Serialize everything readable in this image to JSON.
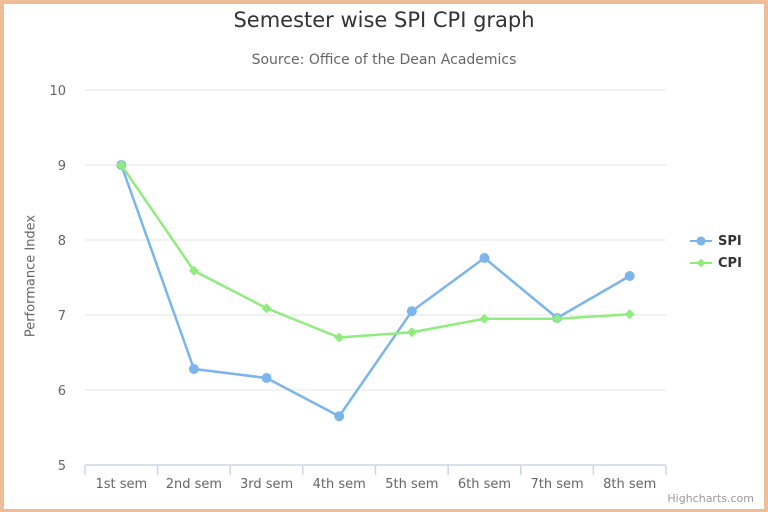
{
  "title": "Semester wise SPI CPI graph",
  "subtitle": "Source: Office of the Dean Academics",
  "credit": "Highcharts.com",
  "y_axis_label": "Performance Index",
  "y_ticks": [
    "5",
    "6",
    "7",
    "8",
    "9",
    "10"
  ],
  "x_ticks": [
    "1st sem",
    "2nd sem",
    "3rd sem",
    "4th sem",
    "5th sem",
    "6th sem",
    "7th sem",
    "8th sem"
  ],
  "legend": [
    {
      "name": "SPI",
      "color": "#7CB5EC",
      "marker": "circle"
    },
    {
      "name": "CPI",
      "color": "#90ED7D",
      "marker": "diamond"
    }
  ],
  "chart_data": {
    "type": "line",
    "title": "Semester wise SPI CPI graph",
    "subtitle": "Source: Office of the Dean Academics",
    "xlabel": "",
    "ylabel": "Performance Index",
    "ylim": [
      5,
      10
    ],
    "categories": [
      "1st sem",
      "2nd sem",
      "3rd sem",
      "4th sem",
      "5th sem",
      "6th sem",
      "7th sem",
      "8th sem"
    ],
    "series": [
      {
        "name": "SPI",
        "color": "#7CB5EC",
        "values": [
          9.0,
          6.28,
          6.16,
          5.65,
          7.05,
          7.76,
          6.96,
          7.52
        ]
      },
      {
        "name": "CPI",
        "color": "#90ED7D",
        "values": [
          9.0,
          7.59,
          7.09,
          6.7,
          6.77,
          6.95,
          6.95,
          7.01
        ]
      }
    ],
    "grid": true,
    "legend_position": "right"
  }
}
